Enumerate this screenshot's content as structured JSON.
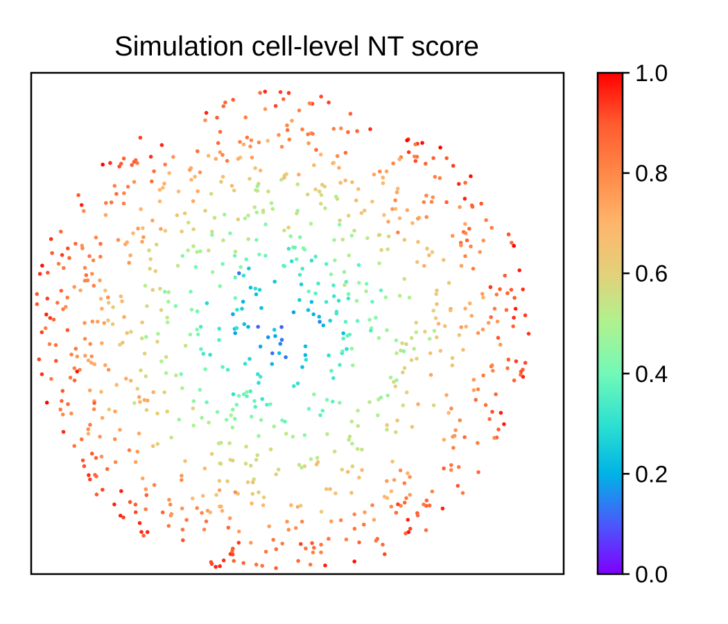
{
  "chart_data": {
    "type": "scatter",
    "title": "Simulation cell-level NT score",
    "xlabel": "",
    "ylabel": "",
    "xlim": [
      0,
      1
    ],
    "ylim": [
      0,
      1
    ],
    "axis_ticks_visible": false,
    "grid": false,
    "colormap": "rainbow",
    "colorbar": {
      "label": "",
      "range": [
        0.0,
        1.0
      ],
      "ticks": [
        0.0,
        0.2,
        0.4,
        0.6,
        0.8,
        1.0
      ],
      "tick_labels": [
        "0.0",
        "0.2",
        "0.4",
        "0.6",
        "0.8",
        "1.0"
      ],
      "colors": [
        "#7f00ff",
        "#4a59fb",
        "#00b3e6",
        "#2ee1d0",
        "#72f9b8",
        "#aef28f",
        "#e3d07a",
        "#ffb56b",
        "#ff8848",
        "#ff5a2f",
        "#ff0000"
      ]
    },
    "point_count_approx": 960,
    "description_of_distribution": "points form a disc; score is lowest in the center and rises radially outward",
    "center": [
      0.47,
      0.48
    ],
    "radius": 0.47,
    "seed": 7
  }
}
